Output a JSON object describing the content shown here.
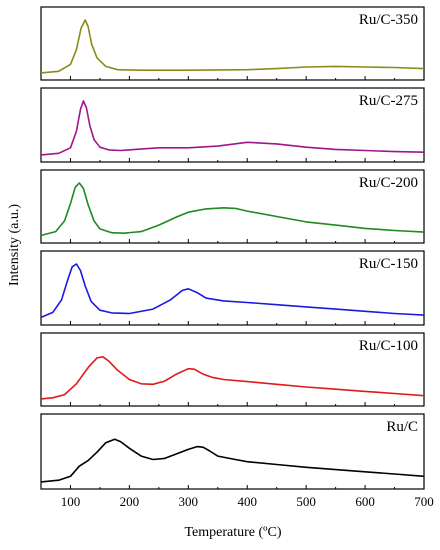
{
  "chart_data": {
    "type": "line",
    "xlabel": "Temperature (ºC)",
    "ylabel": "Intensity (a.u.)",
    "xlim": [
      50,
      700
    ],
    "x_ticks": [
      100,
      200,
      300,
      400,
      500,
      600,
      700
    ],
    "grid": false,
    "layout": "stacked-panels",
    "series": [
      {
        "name": "Ru/C-350",
        "color": "#8b8b1a",
        "x": [
          50,
          80,
          100,
          110,
          118,
          125,
          130,
          136,
          145,
          160,
          180,
          220,
          300,
          400,
          450,
          500,
          550,
          600,
          650,
          700
        ],
        "y": [
          0.02,
          0.05,
          0.18,
          0.45,
          0.85,
          1.0,
          0.88,
          0.55,
          0.3,
          0.14,
          0.08,
          0.07,
          0.07,
          0.08,
          0.1,
          0.13,
          0.14,
          0.13,
          0.12,
          0.1
        ]
      },
      {
        "name": "Ru/C-275",
        "color": "#a0158c",
        "x": [
          50,
          80,
          100,
          110,
          117,
          122,
          127,
          133,
          140,
          150,
          165,
          185,
          210,
          250,
          300,
          350,
          400,
          450,
          500,
          550,
          600,
          650,
          700
        ],
        "y": [
          0.02,
          0.05,
          0.15,
          0.45,
          0.85,
          1.0,
          0.88,
          0.55,
          0.3,
          0.16,
          0.11,
          0.1,
          0.12,
          0.15,
          0.15,
          0.18,
          0.25,
          0.22,
          0.16,
          0.12,
          0.1,
          0.08,
          0.07
        ]
      },
      {
        "name": "Ru/C-200",
        "color": "#1f8a1f",
        "x": [
          50,
          75,
          90,
          100,
          108,
          115,
          122,
          130,
          140,
          150,
          170,
          190,
          220,
          250,
          280,
          300,
          330,
          360,
          380,
          400,
          450,
          500,
          550,
          600,
          650,
          700
        ],
        "y": [
          0.03,
          0.1,
          0.3,
          0.62,
          0.92,
          1.0,
          0.9,
          0.6,
          0.3,
          0.15,
          0.08,
          0.07,
          0.1,
          0.22,
          0.37,
          0.46,
          0.52,
          0.54,
          0.53,
          0.48,
          0.38,
          0.28,
          0.22,
          0.16,
          0.12,
          0.09
        ]
      },
      {
        "name": "Ru/C-150",
        "color": "#1a1ae0",
        "x": [
          50,
          70,
          85,
          95,
          103,
          110,
          117,
          125,
          135,
          150,
          170,
          200,
          240,
          270,
          290,
          300,
          315,
          330,
          360,
          400,
          450,
          500,
          550,
          600,
          650,
          700
        ],
        "y": [
          0.03,
          0.12,
          0.35,
          0.7,
          0.95,
          1.0,
          0.88,
          0.6,
          0.32,
          0.16,
          0.11,
          0.1,
          0.18,
          0.35,
          0.52,
          0.55,
          0.48,
          0.38,
          0.33,
          0.3,
          0.26,
          0.22,
          0.18,
          0.14,
          0.1,
          0.07
        ]
      },
      {
        "name": "Ru/C-100",
        "color": "#e01a1a",
        "x": [
          50,
          70,
          90,
          110,
          130,
          145,
          155,
          165,
          180,
          200,
          220,
          240,
          260,
          280,
          300,
          310,
          325,
          340,
          360,
          400,
          450,
          500,
          550,
          600,
          650,
          700
        ],
        "y": [
          0.02,
          0.04,
          0.1,
          0.3,
          0.6,
          0.78,
          0.8,
          0.72,
          0.55,
          0.38,
          0.3,
          0.29,
          0.35,
          0.48,
          0.58,
          0.57,
          0.48,
          0.42,
          0.38,
          0.34,
          0.29,
          0.24,
          0.2,
          0.16,
          0.12,
          0.08
        ]
      },
      {
        "name": "Ru/C",
        "color": "#000000",
        "x": [
          50,
          80,
          100,
          115,
          130,
          145,
          160,
          175,
          185,
          200,
          220,
          240,
          260,
          280,
          300,
          315,
          325,
          335,
          350,
          380,
          400,
          450,
          500,
          550,
          600,
          650,
          700
        ],
        "y": [
          0.02,
          0.05,
          0.12,
          0.3,
          0.4,
          0.55,
          0.72,
          0.78,
          0.74,
          0.62,
          0.48,
          0.42,
          0.44,
          0.52,
          0.6,
          0.65,
          0.64,
          0.58,
          0.48,
          0.42,
          0.38,
          0.33,
          0.28,
          0.24,
          0.2,
          0.16,
          0.12
        ]
      }
    ]
  }
}
